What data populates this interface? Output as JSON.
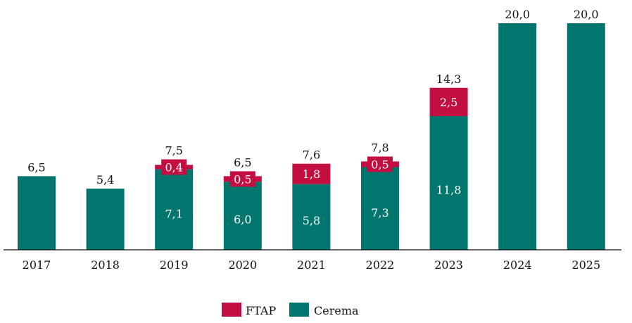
{
  "chart_data": {
    "type": "bar",
    "stacked": true,
    "title": "",
    "xlabel": "",
    "ylabel": "",
    "ylim": [
      0,
      20
    ],
    "grid": false,
    "legend_position": "bottom-center",
    "categories": [
      "2017",
      "2018",
      "2019",
      "2020",
      "2021",
      "2022",
      "2023",
      "2024",
      "2025"
    ],
    "series": [
      {
        "name": "Cerema",
        "color": "#00766E",
        "values": [
          6.5,
          5.4,
          7.1,
          6.0,
          5.8,
          7.3,
          11.8,
          20.0,
          20.0
        ],
        "labels": [
          "",
          "",
          "7,1",
          "6,0",
          "5,8",
          "7,3",
          "11,8",
          "",
          ""
        ]
      },
      {
        "name": "FTAP",
        "color": "#C20E40",
        "values": [
          0,
          0,
          0.4,
          0.5,
          1.8,
          0.5,
          2.5,
          0,
          0
        ],
        "labels": [
          "",
          "",
          "0,4",
          "0,5",
          "1,8",
          "0,5",
          "2,5",
          "",
          ""
        ]
      }
    ],
    "totals": [
      6.5,
      5.4,
      7.5,
      6.5,
      7.6,
      7.8,
      14.3,
      20.0,
      20.0
    ],
    "total_labels": [
      "6,5",
      "5,4",
      "7,5",
      "6,5",
      "7,6",
      "7,8",
      "14,3",
      "20,0",
      "20,0"
    ],
    "legend": [
      {
        "name": "FTAP",
        "color": "#C20E40"
      },
      {
        "name": "Cerema",
        "color": "#00766E"
      }
    ]
  }
}
